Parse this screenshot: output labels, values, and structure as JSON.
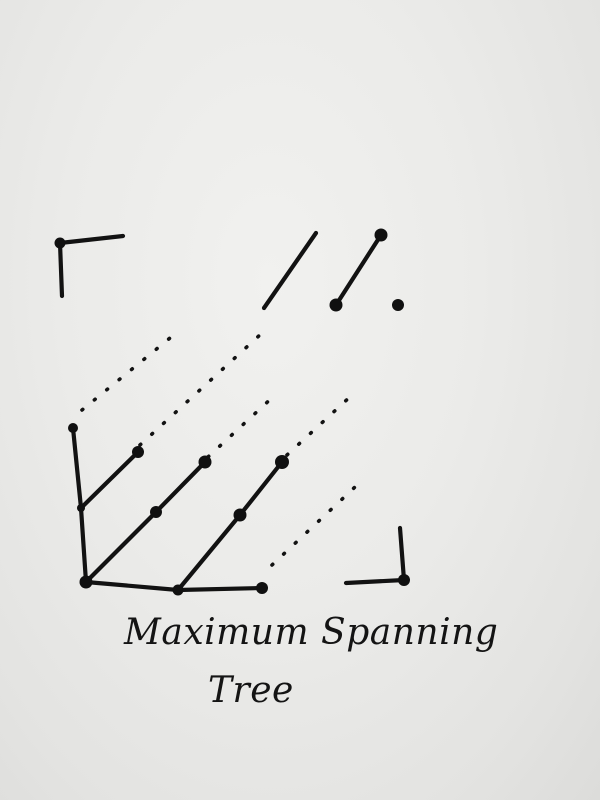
{
  "caption": {
    "line1": "Maximum Spanning",
    "line2": "Tree"
  },
  "colors": {
    "paper": "#ebebe9",
    "ink": "#121212"
  }
}
